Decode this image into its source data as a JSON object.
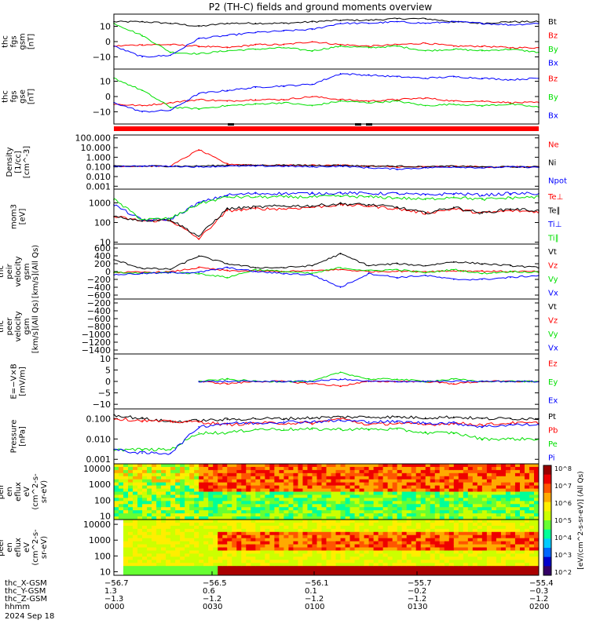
{
  "title": "P2 (TH-C) fields and ground moments overview",
  "colors": {
    "black": "#000000",
    "red": "#ff0000",
    "green": "#00e000",
    "blue": "#0000ff"
  },
  "chart_data": [
    {
      "type": "line",
      "ylabel_lines": [
        "thc",
        "fgs",
        "gsm",
        "[nT]"
      ],
      "yticks": [
        "10",
        "0",
        "−10"
      ],
      "series": [
        {
          "name": "Bt",
          "color": "#000000",
          "values": [
            13,
            13,
            12,
            10,
            12,
            12,
            12,
            13,
            14,
            14,
            15,
            15,
            13,
            12,
            13,
            13
          ]
        },
        {
          "name": "Bz",
          "color": "#ff0000",
          "values": [
            -3,
            -2,
            -2,
            -3,
            -4,
            -2,
            -2,
            0,
            -2,
            -3,
            -2,
            -1,
            -3,
            -3,
            -4,
            -4
          ]
        },
        {
          "name": "By",
          "color": "#00e000",
          "values": [
            12,
            4,
            -7,
            -8,
            -6,
            -5,
            -4,
            -6,
            -3,
            -4,
            -3,
            -6,
            -5,
            -6,
            -5,
            -7
          ]
        },
        {
          "name": "Bx",
          "color": "#0000ff",
          "values": [
            -3,
            -10,
            -9,
            2,
            4,
            6,
            7,
            8,
            12,
            12,
            13,
            12,
            13,
            12,
            11,
            12
          ]
        }
      ]
    },
    {
      "type": "line",
      "ylabel_lines": [
        "thc",
        "fgs",
        "gse",
        "[nT]"
      ],
      "yticks": [
        "10",
        "0",
        "−10"
      ],
      "series": [
        {
          "name": "Bz",
          "color": "#ff0000",
          "values": [
            -5,
            -6,
            -4,
            -2,
            -3,
            -2,
            -2,
            0,
            -2,
            -3,
            -2,
            -1,
            -3,
            -3,
            -4,
            -4
          ]
        },
        {
          "name": "By",
          "color": "#00e000",
          "values": [
            12,
            4,
            -7,
            -8,
            -6,
            -5,
            -4,
            -6,
            -3,
            -4,
            -3,
            -6,
            -5,
            -6,
            -5,
            -7
          ]
        },
        {
          "name": "Bx",
          "color": "#0000ff",
          "values": [
            -4,
            -10,
            -9,
            2,
            4,
            6,
            7,
            8,
            15,
            14,
            13,
            12,
            13,
            12,
            11,
            12
          ]
        }
      ]
    },
    {
      "type": "line",
      "ylabel_lines": [
        "Density",
        "[1/cc]",
        "[cm^-3]"
      ],
      "yticks": [
        "100.000",
        "10.000",
        "1.000",
        "0.100",
        "0.010",
        "0.001"
      ],
      "series": [
        {
          "name": "Ne",
          "color": "#ff0000",
          "values": [
            0.12,
            0.12,
            0.12,
            6,
            0.2,
            0.15,
            0.15,
            0.15,
            0.15,
            0.12,
            0.1,
            0.1,
            0.12,
            0.1,
            0.1,
            0.1
          ]
        },
        {
          "name": "Ni",
          "color": "#000000",
          "values": [
            0.12,
            0.12,
            0.12,
            0.12,
            0.15,
            0.15,
            0.15,
            0.14,
            0.15,
            0.12,
            0.12,
            0.1,
            0.12,
            0.1,
            0.1,
            0.1
          ]
        },
        {
          "name": "Npot",
          "color": "#0000ff",
          "values": [
            0.12,
            0.12,
            0.12,
            0.1,
            0.12,
            0.12,
            0.12,
            0.1,
            0.12,
            0.08,
            0.06,
            0.08,
            0.1,
            0.08,
            0.1,
            0.09
          ]
        }
      ]
    },
    {
      "type": "line",
      "ylabel_lines": [
        "mom3",
        "[eV]"
      ],
      "yticks": [
        "1000",
        "100",
        "10"
      ],
      "series": [
        {
          "name": "Te⊥",
          "color": "#ff0000",
          "values": [
            200,
            120,
            130,
            15,
            400,
            500,
            500,
            600,
            800,
            700,
            500,
            300,
            500,
            300,
            400,
            350
          ]
        },
        {
          "name": "Te∥",
          "color": "#000000",
          "values": [
            200,
            130,
            140,
            20,
            500,
            600,
            700,
            700,
            900,
            800,
            600,
            300,
            600,
            300,
            500,
            400
          ]
        },
        {
          "name": "Ti⊥",
          "color": "#0000ff",
          "values": [
            800,
            130,
            150,
            1000,
            2500,
            3000,
            3000,
            3000,
            3200,
            3000,
            3000,
            2500,
            3000,
            2500,
            3000,
            3000
          ]
        },
        {
          "name": "Ti∥",
          "color": "#00e000",
          "values": [
            1500,
            140,
            160,
            900,
            2000,
            2000,
            2000,
            2000,
            2200,
            2000,
            1800,
            1500,
            2000,
            1500,
            1800,
            2000
          ]
        }
      ]
    },
    {
      "type": "line",
      "ylabel_lines": [
        "thc",
        "peir",
        "velocity",
        "gsm",
        "[km/s](All Qs)"
      ],
      "yticks": [
        "600",
        "400",
        "200",
        "0",
        "−200",
        "−400",
        "−600"
      ],
      "series": [
        {
          "name": "Vt",
          "color": "#000000",
          "values": [
            300,
            80,
            60,
            400,
            200,
            100,
            100,
            150,
            450,
            150,
            200,
            150,
            250,
            200,
            150,
            100
          ]
        },
        {
          "name": "Vz",
          "color": "#ff0000",
          "values": [
            -20,
            -20,
            -10,
            100,
            20,
            10,
            0,
            20,
            50,
            0,
            10,
            0,
            20,
            10,
            0,
            0
          ]
        },
        {
          "name": "Vy",
          "color": "#00e000",
          "values": [
            -30,
            -40,
            -20,
            -50,
            -150,
            50,
            0,
            -50,
            100,
            20,
            50,
            -30,
            50,
            -50,
            0,
            -20
          ]
        },
        {
          "name": "Vx",
          "color": "#0000ff",
          "values": [
            -80,
            -50,
            -30,
            -20,
            100,
            0,
            -50,
            -80,
            -400,
            -50,
            -150,
            -100,
            -200,
            -200,
            -150,
            -100
          ]
        }
      ]
    },
    {
      "type": "line",
      "ylabel_lines": [
        "thc",
        "peer",
        "velocity",
        "gsm",
        "[km/s](All Qs)"
      ],
      "yticks": [
        "−200",
        "−400",
        "−600",
        "−800",
        "−1000",
        "−1200",
        "−1400"
      ],
      "series": [
        {
          "name": "Vt",
          "color": "#000000",
          "values": []
        },
        {
          "name": "Vz",
          "color": "#ff0000",
          "values": []
        },
        {
          "name": "Vy",
          "color": "#00e000",
          "values": []
        },
        {
          "name": "Vx",
          "color": "#0000ff",
          "values": []
        }
      ]
    },
    {
      "type": "line",
      "ylabel_lines": [
        "E=−V×B",
        "[mV/m]"
      ],
      "yticks": [
        "10",
        "5",
        "0",
        "−5",
        "−10"
      ],
      "series": [
        {
          "name": "Ez",
          "color": "#ff0000",
          "values": [
            null,
            null,
            null,
            0,
            -1,
            0,
            0,
            -1,
            -2,
            0,
            0,
            0,
            -1,
            0,
            0,
            0
          ]
        },
        {
          "name": "Ey",
          "color": "#00e000",
          "values": [
            null,
            null,
            null,
            0,
            1,
            0,
            0,
            0,
            4,
            1,
            1,
            0,
            1,
            0,
            0,
            0
          ]
        },
        {
          "name": "Ex",
          "color": "#0000ff",
          "values": [
            null,
            null,
            null,
            0,
            0,
            0,
            0,
            0,
            1,
            0,
            0,
            0,
            0,
            0,
            0,
            0
          ]
        }
      ]
    },
    {
      "type": "line",
      "ylabel_lines": [
        "Pressure",
        "[nPa]"
      ],
      "yticks": [
        "0.100",
        "0.010",
        "0.001"
      ],
      "series": [
        {
          "name": "Pt",
          "color": "#000000",
          "values": [
            0.15,
            0.1,
            0.07,
            0.08,
            0.09,
            0.1,
            0.1,
            0.11,
            0.12,
            0.12,
            0.12,
            0.11,
            0.12,
            0.1,
            0.1,
            0.1
          ]
        },
        {
          "name": "Pb",
          "color": "#ff0000",
          "values": [
            0.1,
            0.08,
            0.07,
            0.07,
            0.05,
            0.06,
            0.06,
            0.06,
            0.1,
            0.05,
            0.06,
            0.05,
            0.06,
            0.05,
            0.06,
            0.06
          ]
        },
        {
          "name": "Pe",
          "color": "#00e000",
          "values": [
            0.003,
            0.003,
            0.003,
            0.02,
            0.02,
            0.03,
            0.03,
            0.03,
            0.03,
            0.03,
            0.03,
            0.02,
            0.02,
            0.01,
            0.01,
            0.01
          ]
        },
        {
          "name": "Pi",
          "color": "#0000ff",
          "values": [
            0.003,
            0.002,
            0.002,
            0.04,
            0.06,
            0.06,
            0.07,
            0.07,
            0.08,
            0.07,
            0.07,
            0.06,
            0.06,
            0.04,
            0.05,
            0.05
          ]
        }
      ]
    },
    {
      "type": "heatmap",
      "ylabel_lines": [
        "thc",
        "peir",
        "en",
        "eflux",
        "eV",
        "(cm^2-s-",
        "sr-eV)"
      ],
      "yticks": [
        "10000",
        "1000",
        "100",
        "10"
      ]
    },
    {
      "type": "heatmap",
      "ylabel_lines": [
        "thc",
        "peer",
        "en",
        "eflux",
        "eV",
        "(cm^2-s-",
        "sr-eV)"
      ],
      "yticks": [
        "10000",
        "1000",
        "100",
        "10"
      ]
    }
  ],
  "colorbar": {
    "tick_labels": [
      "10^8",
      "10^7",
      "10^6",
      "10^5",
      "10^4",
      "10^3",
      "10^2"
    ],
    "label": "[eV/(cm^2-s-sr-eV)] (All Qs)"
  },
  "x_axis": {
    "rows": [
      {
        "label": "thc_X-GSM",
        "ticks": [
          "−56.7",
          "−56.5",
          "−56.1",
          "−55.7",
          "−55.4"
        ]
      },
      {
        "label": "thc_Y-GSM",
        "ticks": [
          "1.3",
          "0.6",
          "0.1",
          "−0.2",
          "−0.3"
        ]
      },
      {
        "label": "thc_Z-GSM",
        "ticks": [
          "−1.3",
          "−1.2",
          "−1.2",
          "−1.2",
          "−1.2"
        ]
      },
      {
        "label": "hhmm",
        "ticks": [
          "0000",
          "0030",
          "0100",
          "0130",
          "0200"
        ]
      }
    ],
    "date": "2024 Sep 18"
  }
}
